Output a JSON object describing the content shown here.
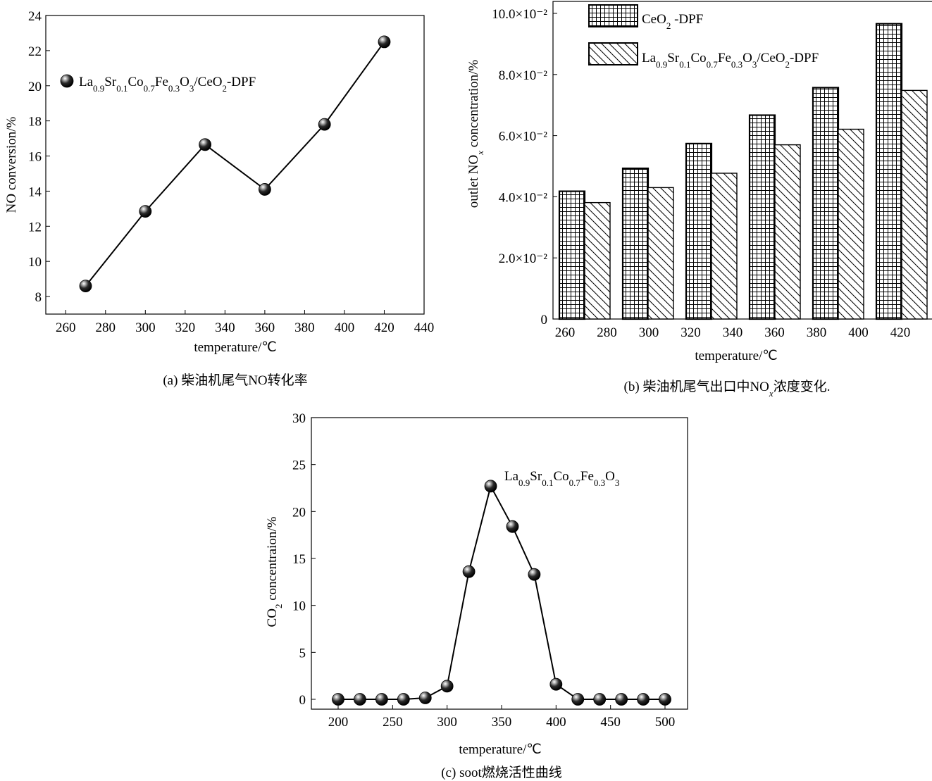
{
  "chart_data": [
    {
      "id": "a",
      "type": "line",
      "caption": "(a) 柴油机尾气NO转化率",
      "xlabel": "temperature/℃",
      "ylabel": "NO  conversion/%",
      "xlim": [
        250,
        440
      ],
      "ylim": [
        7,
        24
      ],
      "xticks": [
        260,
        280,
        300,
        320,
        340,
        360,
        380,
        400,
        420,
        440
      ],
      "yticks": [
        8,
        10,
        12,
        14,
        16,
        18,
        20,
        22,
        24
      ],
      "legend_position": "upper-left",
      "series": [
        {
          "name": "La0.9Sr0.1Co0.7Fe0.3O3/CeO2-DPF",
          "x": [
            270,
            300,
            330,
            360,
            390,
            420
          ],
          "y": [
            8.6,
            12.85,
            16.65,
            14.1,
            17.8,
            22.5
          ]
        }
      ]
    },
    {
      "id": "b",
      "type": "bar",
      "caption": "(b) 柴油机尾气出口中NOx浓度变化.",
      "xlabel": "temperature/℃",
      "ylabel": "outlet NOx concentration/%",
      "ylim": [
        0,
        0.1
      ],
      "yticks": [
        "0",
        "2.0×10⁻²",
        "4.0×10⁻²",
        "6.0×10⁻²",
        "8.0×10⁻²",
        "10.0×10⁻²"
      ],
      "xticks": [
        260,
        280,
        300,
        320,
        340,
        360,
        380,
        400,
        420
      ],
      "categories": [
        270,
        300,
        330,
        360,
        390,
        420
      ],
      "legend_position": "top-left",
      "series": [
        {
          "name": "CeO2 -DPF",
          "pattern": "grid",
          "values": [
            0.0418,
            0.0493,
            0.0574,
            0.0667,
            0.0757,
            0.0966
          ]
        },
        {
          "name": "La0.9Sr0.1Co0.7Fe0.3O3/CeO2-DPF",
          "pattern": "hatch",
          "values": [
            0.0381,
            0.043,
            0.0477,
            0.057,
            0.0621,
            0.0748
          ]
        }
      ]
    },
    {
      "id": "c",
      "type": "line",
      "caption": "(c) soot燃烧活性曲线",
      "xlabel": "temperature/℃",
      "ylabel": "CO2 concentraion/%",
      "xlim": [
        180,
        520
      ],
      "ylim": [
        -1,
        30
      ],
      "xticks": [
        200,
        250,
        300,
        350,
        400,
        450,
        500
      ],
      "yticks": [
        0,
        5,
        10,
        15,
        20,
        25,
        30
      ],
      "series": [
        {
          "name": "La0.9Sr0.1Co0.7Fe0.3O3",
          "x": [
            200,
            220,
            240,
            260,
            280,
            300,
            320,
            340,
            360,
            380,
            400,
            420,
            440,
            460,
            480,
            500
          ],
          "y": [
            0,
            0,
            0,
            0,
            0.15,
            1.4,
            13.6,
            22.7,
            18.4,
            13.3,
            1.6,
            0,
            0,
            0,
            0,
            0
          ]
        }
      ]
    }
  ]
}
